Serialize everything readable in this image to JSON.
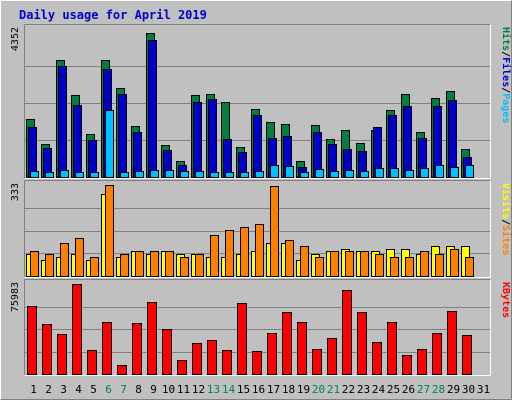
{
  "chart_data": {
    "type": "bar",
    "title": "Daily usage for April 2019",
    "categories": [
      "1",
      "2",
      "3",
      "4",
      "5",
      "6",
      "7",
      "8",
      "9",
      "10",
      "11",
      "12",
      "13",
      "14",
      "15",
      "16",
      "17",
      "18",
      "19",
      "20",
      "21",
      "22",
      "23",
      "24",
      "25",
      "26",
      "27",
      "28",
      "29",
      "30",
      "31"
    ],
    "weekend_days": [
      "6",
      "7",
      "13",
      "14",
      "20",
      "21",
      "27",
      "28"
    ],
    "panels": [
      {
        "name": "hits-files-pages",
        "ymax": 4352,
        "ymax_label": "4352",
        "right_labels": [
          {
            "text": "Hits",
            "color": "#008040"
          },
          {
            "text": "/",
            "color": "#000000"
          },
          {
            "text": "Files",
            "color": "#0000cc"
          },
          {
            "text": "/",
            "color": "#000000"
          },
          {
            "text": "Pages",
            "color": "#00c0ff"
          }
        ],
        "series": [
          {
            "name": "Hits",
            "color": "#008040",
            "values": [
              1700,
              980,
              3450,
              2420,
              1250,
              3430,
              2620,
              1490,
              4230,
              950,
              470,
              2400,
              2430,
              2200,
              870,
              2010,
              1630,
              1570,
              480,
              1520,
              1110,
              1380,
              1010,
              1370,
              1960,
              2450,
              1310,
              2330,
              2530,
              830,
              0
            ]
          },
          {
            "name": "Files",
            "color": "#0000cc",
            "values": [
              1480,
              840,
              3270,
              2110,
              1100,
              3170,
              2440,
              1330,
              4020,
              790,
              350,
              2200,
              2300,
              1110,
              730,
              1820,
              1140,
              1220,
              300,
              1330,
              960,
              830,
              770,
              1480,
              1810,
              2080,
              1150,
              2080,
              2250,
              580,
              0
            ]
          },
          {
            "name": "Pages",
            "color": "#00c0ff",
            "values": [
              180,
              140,
              200,
              160,
              160,
              1970,
              160,
              190,
              200,
              200,
              170,
              170,
              150,
              140,
              140,
              170,
              360,
              310,
              150,
              240,
              180,
              200,
              180,
              250,
              250,
              220,
              260,
              340,
              300,
              350,
              0
            ]
          }
        ]
      },
      {
        "name": "visits-sites",
        "ymax": 333,
        "ymax_label": "333",
        "right_labels": [
          {
            "text": "Visits",
            "color": "#ffff00"
          },
          {
            "text": "/",
            "color": "#000000"
          },
          {
            "text": "Sites",
            "color": "#ff8000"
          }
        ],
        "series": [
          {
            "name": "Visits",
            "color": "#ffff00",
            "values": [
              80,
              60,
              70,
              80,
              60,
              300,
              70,
              90,
              80,
              90,
              80,
              80,
              70,
              70,
              80,
              90,
              120,
              120,
              60,
              80,
              90,
              100,
              90,
              90,
              100,
              100,
              80,
              110,
              110,
              110,
              0
            ]
          },
          {
            "name": "Sites",
            "color": "#ff8000",
            "values": [
              90,
              80,
              120,
              140,
              70,
              333,
              80,
              90,
              90,
              90,
              70,
              80,
              150,
              170,
              180,
              190,
              330,
              130,
              110,
              70,
              90,
              90,
              90,
              80,
              70,
              70,
              90,
              80,
              100,
              70,
              0
            ]
          }
        ]
      },
      {
        "name": "kbytes",
        "ymax": 75983,
        "ymax_label": "75983",
        "right_labels": [
          {
            "text": "KBytes",
            "color": "#ff0000"
          }
        ],
        "series": [
          {
            "name": "KBytes",
            "color": "#ff0000",
            "values": [
              57000,
              42000,
              34000,
              75983,
              20000,
              44000,
              8000,
              43000,
              61000,
              38000,
              12000,
              26000,
              29000,
              20000,
              60000,
              19000,
              35000,
              52000,
              44000,
              21000,
              30000,
              71000,
              52000,
              27000,
              44000,
              16000,
              21000,
              35000,
              53000,
              33000,
              0
            ]
          }
        ]
      }
    ]
  }
}
